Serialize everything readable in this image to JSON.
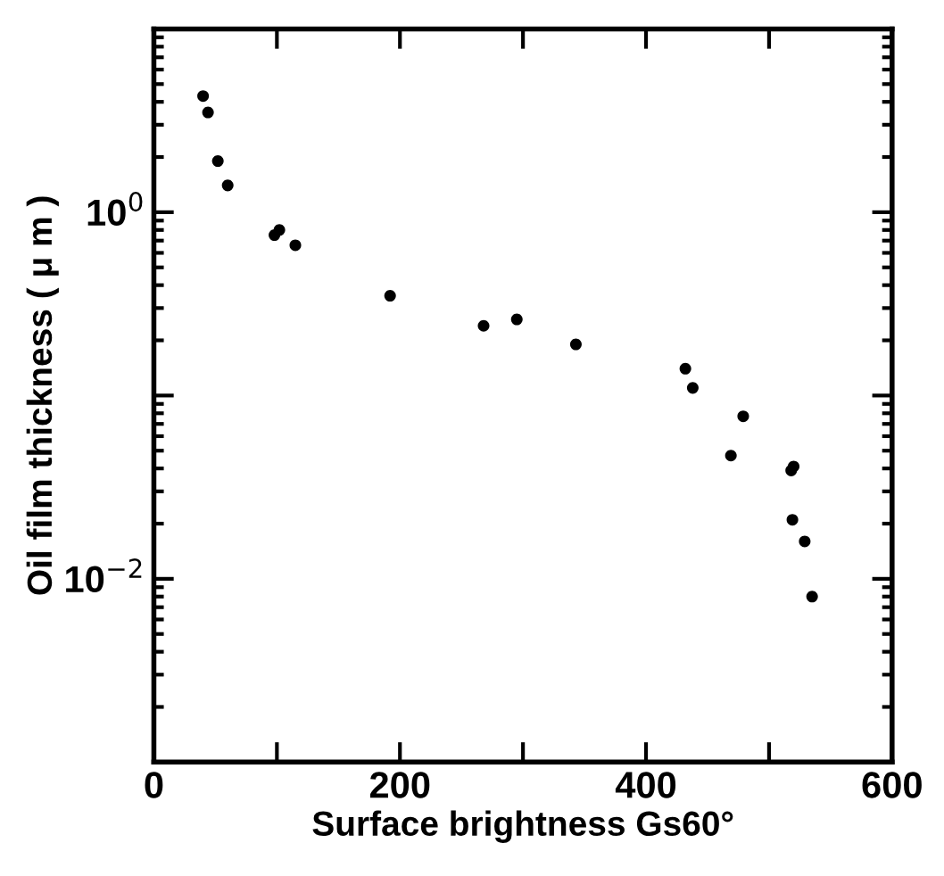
{
  "chart_data": {
    "type": "scatter",
    "xlabel": "Surface brightness Gs60°",
    "ylabel": "Oil film thickness ( μ m )",
    "log": "y",
    "marker": "circle",
    "grid": false,
    "xlim": [
      0,
      600
    ],
    "xticks": [
      0,
      {
        "value": 100,
        "label": null
      },
      200,
      {
        "value": 300,
        "label": null
      },
      400,
      {
        "value": 500,
        "label": null
      },
      600
    ],
    "ylim": [
      0.001,
      10
    ],
    "yticks": [
      {
        "value": 0.001,
        "label": null
      },
      {
        "value": 0.01,
        "label": "10$^{−2}$"
      },
      {
        "value": 0.1,
        "label": null
      },
      {
        "value": 1,
        "label": "10$^{0}$"
      },
      {
        "value": 10,
        "label": null
      }
    ],
    "series": [
      {
        "color": "#000000",
        "x": [
          40,
          44,
          52,
          60,
          98,
          102,
          115,
          192,
          268,
          295,
          343,
          432,
          438,
          479,
          469,
          520,
          518,
          519,
          529,
          535
        ],
        "values": [
          4.3,
          3.5,
          1.9,
          1.4,
          0.75,
          0.8,
          0.66,
          0.35,
          0.24,
          0.26,
          0.19,
          0.14,
          0.11,
          0.077,
          0.047,
          0.041,
          0.039,
          0.021,
          0.016,
          0.008
        ]
      }
    ]
  }
}
